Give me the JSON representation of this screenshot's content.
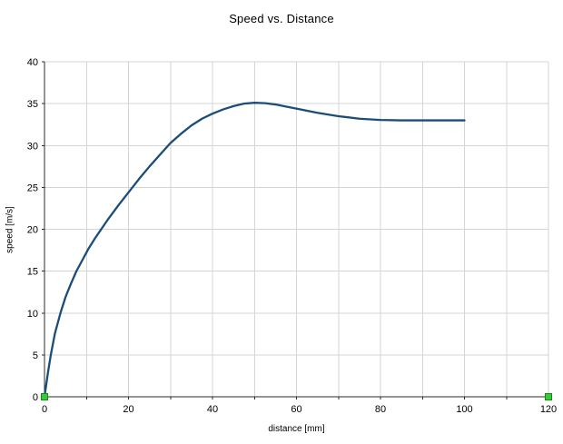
{
  "chart_data": {
    "type": "line",
    "title": "Speed vs. Distance",
    "xlabel": "distance [mm]",
    "ylabel": "speed [m/s]",
    "xlim": [
      0,
      120
    ],
    "ylim": [
      0,
      40
    ],
    "x_tick_labels": [
      0,
      20,
      40,
      60,
      80,
      100,
      120
    ],
    "y_tick_labels": [
      0,
      5,
      10,
      15,
      20,
      25,
      30,
      35,
      40
    ],
    "x_grid_step": 10,
    "y_grid_step": 5,
    "grid": true,
    "legend": "none",
    "line_smooth": true,
    "series": [
      {
        "points": [
          [
            0,
            0
          ],
          [
            0.8,
            2.8
          ],
          [
            1.5,
            5
          ],
          [
            2.5,
            7.6
          ],
          [
            3.8,
            10
          ],
          [
            5,
            11.9
          ],
          [
            6.3,
            13.5
          ],
          [
            7.6,
            15
          ],
          [
            9,
            16.3
          ],
          [
            10.5,
            17.7
          ],
          [
            12,
            18.9
          ],
          [
            13.5,
            20
          ],
          [
            15,
            21.1
          ],
          [
            17.5,
            22.8
          ],
          [
            20,
            24.4
          ],
          [
            22.5,
            26
          ],
          [
            25,
            27.5
          ],
          [
            27.5,
            28.9
          ],
          [
            30,
            30.3
          ],
          [
            32.5,
            31.4
          ],
          [
            35,
            32.4
          ],
          [
            37.5,
            33.2
          ],
          [
            40,
            33.8
          ],
          [
            42.5,
            34.3
          ],
          [
            45,
            34.7
          ],
          [
            47.5,
            35
          ],
          [
            50,
            35.1
          ],
          [
            52.5,
            35.05
          ],
          [
            55,
            34.9
          ],
          [
            57.5,
            34.65
          ],
          [
            60,
            34.4
          ],
          [
            65,
            33.9
          ],
          [
            70,
            33.5
          ],
          [
            75,
            33.2
          ],
          [
            80,
            33.05
          ],
          [
            85,
            33
          ],
          [
            90,
            33
          ],
          [
            95,
            33
          ],
          [
            100,
            33
          ]
        ]
      }
    ],
    "selection_handles": [
      [
        0,
        0
      ],
      [
        120,
        0
      ]
    ],
    "colors": {
      "line": "#1c4d78",
      "grid": "#d4d4d4",
      "axis": "#2b2b2b",
      "text": "#000000",
      "background": "#ffffff",
      "handle_fill": "#33cc33",
      "handle_border": "#158815"
    }
  }
}
